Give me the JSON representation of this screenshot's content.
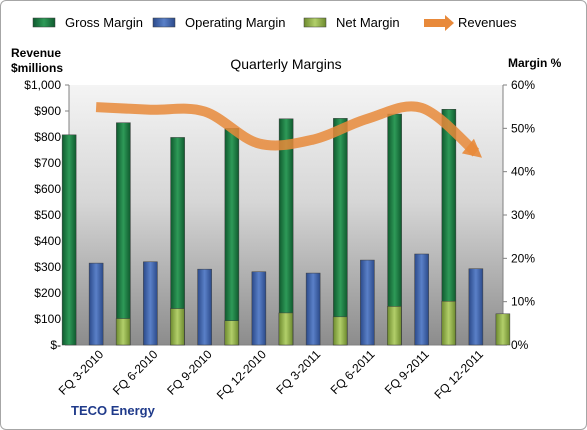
{
  "chart_data": {
    "type": "bar",
    "title": "Quarterly Margins",
    "company": "TECO Energy",
    "left_axis_title": [
      "Revenue",
      "$millions"
    ],
    "right_axis_title": "Margin %",
    "left_ylim": [
      0,
      1000
    ],
    "right_ylim": [
      0,
      60
    ],
    "left_ticks": [
      "$-",
      "$100",
      "$200",
      "$300",
      "$400",
      "$500",
      "$600",
      "$700",
      "$800",
      "$900",
      "$1,000"
    ],
    "right_ticks": [
      "0%",
      "10%",
      "20%",
      "30%",
      "40%",
      "50%",
      "60%"
    ],
    "categories": [
      "FQ 3-2010",
      "FQ 6-2010",
      "FQ 9-2010",
      "FQ 12-2010",
      "FQ 3-2011",
      "FQ 6-2011",
      "FQ 9-2011",
      "FQ 12-2011"
    ],
    "series": [
      {
        "name": "Gross Margin",
        "axis": "right",
        "color": "#1e7b45",
        "values": [
          48.5,
          51.3,
          47.9,
          50.0,
          52.2,
          52.3,
          53.3,
          54.4
        ]
      },
      {
        "name": "Operating Margin",
        "axis": "right",
        "color": "#3f64b0",
        "values": [
          18.9,
          19.2,
          17.5,
          16.9,
          16.6,
          19.6,
          21.0,
          17.6
        ]
      },
      {
        "name": "Net Margin",
        "axis": "right",
        "color": "#8fb04a",
        "values": [
          6.1,
          8.4,
          5.6,
          7.4,
          6.5,
          8.9,
          10.1,
          7.2
        ]
      },
      {
        "name": "Revenues",
        "axis": "left",
        "type": "line",
        "color": "#e8893a",
        "values": [
          915,
          905,
          898,
          775,
          790,
          870,
          912,
          740
        ]
      }
    ],
    "legend_position": "top",
    "grid": false
  }
}
